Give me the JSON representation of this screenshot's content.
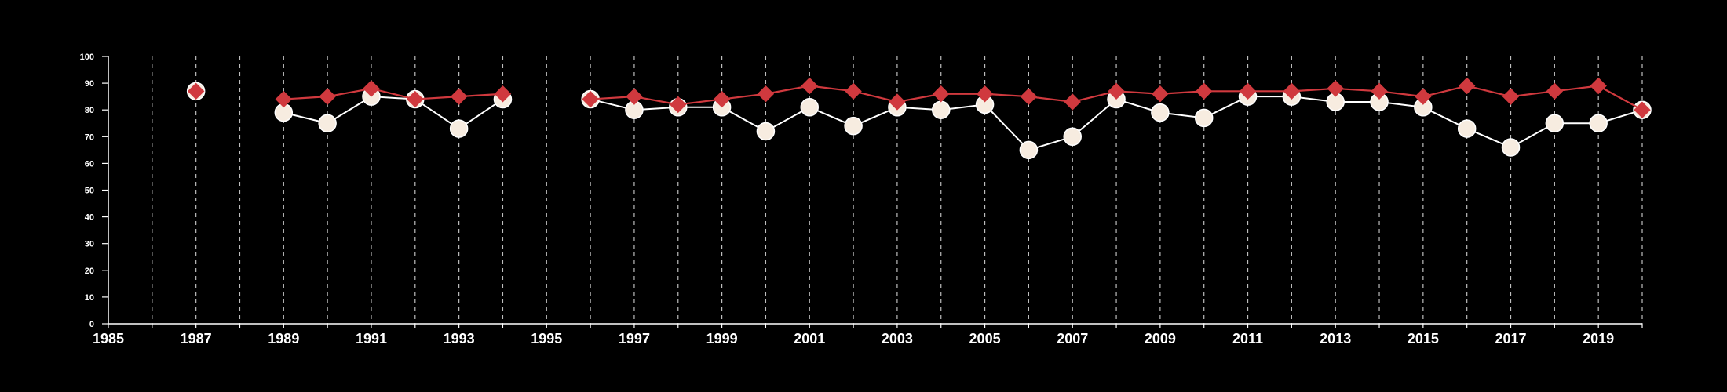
{
  "colors": {
    "background": "#000000",
    "axis": "#ffffff",
    "grid": "#bdbdbd",
    "series_white": "#ffffff",
    "series_white_marker_fill": "#f7ece0",
    "series_red": "#d0393e"
  },
  "chart_data": {
    "type": "line",
    "title": "",
    "xlabel": "",
    "ylabel": "",
    "xlim": [
      1985,
      2020
    ],
    "ylim": [
      0,
      100
    ],
    "x_ticks": [
      "1985",
      "1987",
      "1989",
      "1991",
      "1993",
      "1995",
      "1997",
      "1999",
      "2001",
      "2003",
      "2005",
      "2007",
      "2009",
      "2011",
      "2013",
      "2015",
      "2017",
      "2019"
    ],
    "y_ticks": [
      "0",
      "10",
      "20",
      "30",
      "40",
      "50",
      "60",
      "70",
      "80",
      "90",
      "100"
    ],
    "grid": "vertical dashed lines at every year",
    "legend": "none",
    "series": [
      {
        "marker": "circle",
        "color": "#ffffff",
        "points": [
          [
            1987,
            87
          ],
          [
            1989,
            79
          ],
          [
            1990,
            75
          ],
          [
            1991,
            85
          ],
          [
            1992,
            84
          ],
          [
            1993,
            73
          ],
          [
            1994,
            84
          ],
          [
            1996,
            84
          ],
          [
            1997,
            80
          ],
          [
            1998,
            81
          ],
          [
            1999,
            81
          ],
          [
            2000,
            72
          ],
          [
            2001,
            81
          ],
          [
            2002,
            74
          ],
          [
            2003,
            81
          ],
          [
            2004,
            80
          ],
          [
            2005,
            82
          ],
          [
            2006,
            65
          ],
          [
            2007,
            70
          ],
          [
            2008,
            84
          ],
          [
            2009,
            79
          ],
          [
            2010,
            77
          ],
          [
            2011,
            85
          ],
          [
            2012,
            85
          ],
          [
            2013,
            83
          ],
          [
            2014,
            83
          ],
          [
            2015,
            81
          ],
          [
            2016,
            73
          ],
          [
            2017,
            66
          ],
          [
            2018,
            75
          ],
          [
            2019,
            75
          ],
          [
            2020,
            80
          ]
        ]
      },
      {
        "marker": "diamond",
        "color": "#d0393e",
        "points": [
          [
            1987,
            87
          ],
          [
            1989,
            84
          ],
          [
            1990,
            85
          ],
          [
            1991,
            88
          ],
          [
            1992,
            84
          ],
          [
            1993,
            85
          ],
          [
            1994,
            86
          ],
          [
            1996,
            84
          ],
          [
            1997,
            85
          ],
          [
            1998,
            82
          ],
          [
            1999,
            84
          ],
          [
            2000,
            86
          ],
          [
            2001,
            89
          ],
          [
            2002,
            87
          ],
          [
            2003,
            83
          ],
          [
            2004,
            86
          ],
          [
            2005,
            86
          ],
          [
            2006,
            85
          ],
          [
            2007,
            83
          ],
          [
            2008,
            87
          ],
          [
            2009,
            86
          ],
          [
            2010,
            87
          ],
          [
            2011,
            87
          ],
          [
            2012,
            87
          ],
          [
            2013,
            88
          ],
          [
            2014,
            87
          ],
          [
            2015,
            85
          ],
          [
            2016,
            89
          ],
          [
            2017,
            85
          ],
          [
            2018,
            87
          ],
          [
            2019,
            89
          ],
          [
            2020,
            80
          ]
        ]
      }
    ]
  }
}
